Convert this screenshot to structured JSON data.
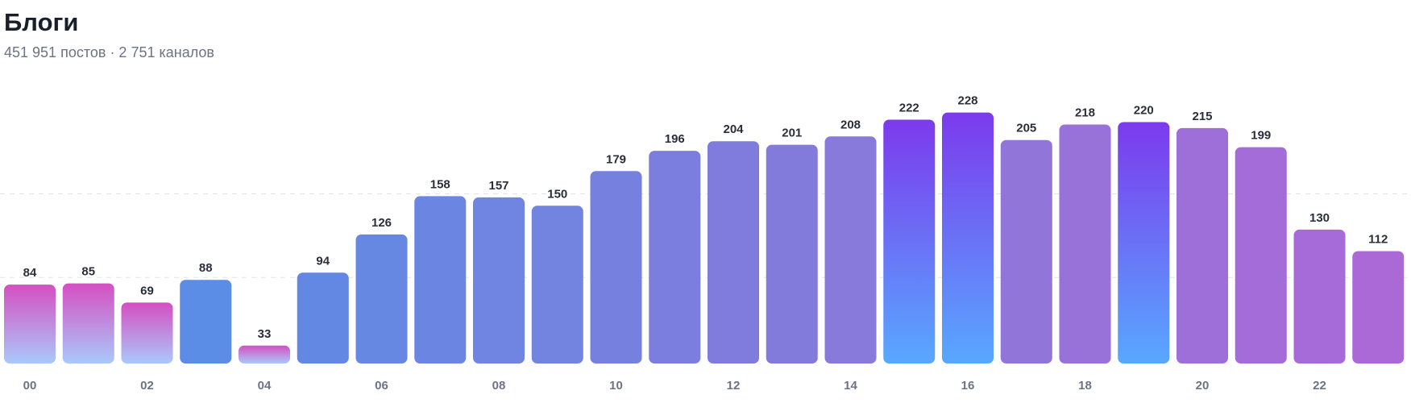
{
  "chart_data": {
    "type": "bar",
    "title": "Блоги",
    "subtitle": "451 951 постов · 2 751 каналов",
    "categories": [
      "00",
      null,
      "02",
      null,
      "04",
      null,
      "06",
      null,
      "08",
      null,
      "10",
      null,
      "12",
      null,
      "14",
      null,
      "16",
      null,
      "18",
      null,
      "20",
      null,
      "22",
      null
    ],
    "values": [
      84,
      85,
      69,
      88,
      33,
      94,
      126,
      158,
      157,
      150,
      179,
      196,
      204,
      201,
      208,
      222,
      228,
      205,
      218,
      220,
      215,
      199,
      130,
      112
    ],
    "colors": [
      [
        "#d54fc2",
        "#a9c9fb"
      ],
      [
        "#d54fc2",
        "#a9c9fb"
      ],
      [
        "#d54fc2",
        "#a9c9fb"
      ],
      "#5b8de6",
      [
        "#d54fc2",
        "#a9c9fb"
      ],
      "#6388e3",
      "#6688e3",
      "#6a86e2",
      "#6f85e1",
      "#7383e0",
      "#7680df",
      "#7b7ede",
      "#7f7cdd",
      "#827bdc",
      "#877adb",
      [
        "#7c3aed",
        "#58a8ff"
      ],
      [
        "#7c3aed",
        "#58a8ff"
      ],
      "#9175d9",
      "#9872d9",
      [
        "#7c3aed",
        "#58a8ff"
      ],
      "#9f6fd9",
      "#a46cd9",
      "#a76bd9",
      "#ab69d8"
    ],
    "ylim": [
      18,
      250
    ],
    "yticks": [
      90,
      160
    ],
    "grid": true
  }
}
